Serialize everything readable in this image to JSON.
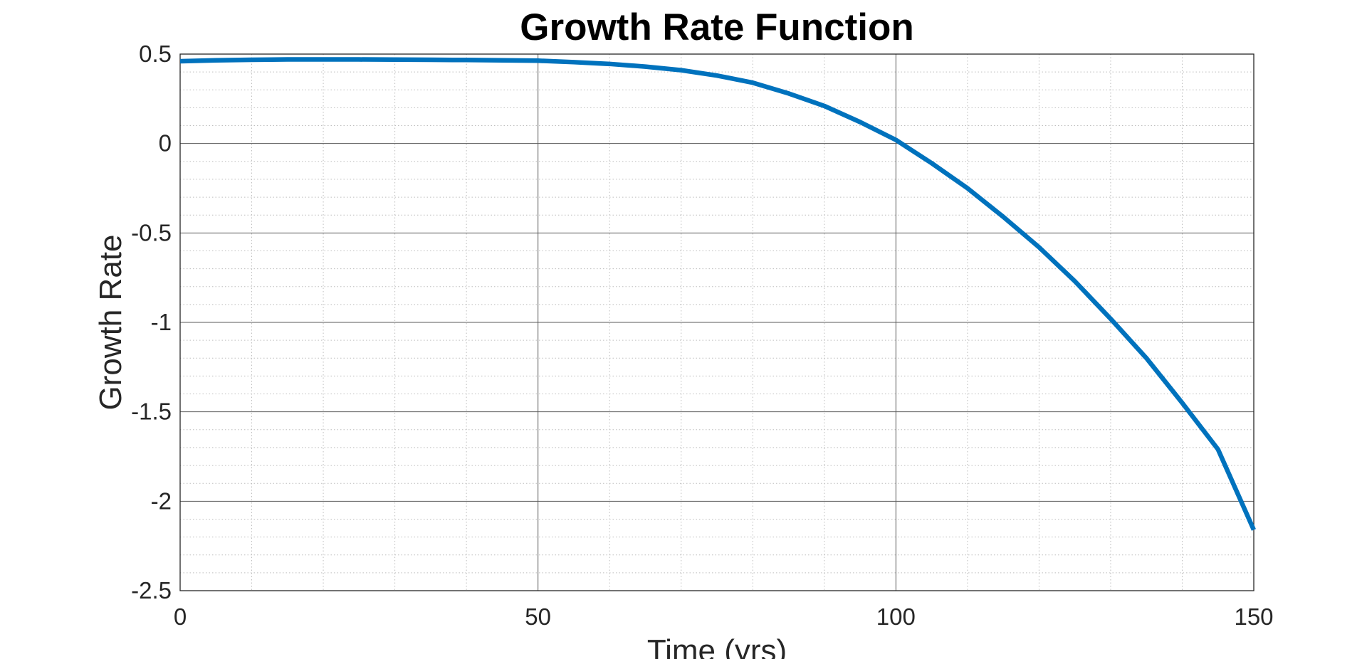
{
  "chart_data": {
    "type": "line",
    "title": "Growth Rate Function",
    "xlabel": "Time (yrs)",
    "ylabel": "Growth Rate",
    "xlim": [
      0,
      150
    ],
    "ylim": [
      -2.5,
      0.5
    ],
    "xticks": [
      0,
      50,
      100,
      150
    ],
    "yticks": [
      0.5,
      0,
      -0.5,
      -1,
      -1.5,
      -2,
      -2.5
    ],
    "grid": true,
    "minor_grid": true,
    "legend": "none",
    "series": [
      {
        "color": "#0072BD",
        "x": [
          0,
          5,
          10,
          15,
          20,
          25,
          30,
          35,
          40,
          45,
          50,
          55,
          60,
          65,
          70,
          75,
          80,
          85,
          90,
          95,
          100,
          105,
          110,
          115,
          120,
          125,
          130,
          135,
          140,
          145,
          150
        ],
        "y": [
          0.46,
          0.465,
          0.468,
          0.47,
          0.47,
          0.47,
          0.469,
          0.468,
          0.467,
          0.465,
          0.463,
          0.455,
          0.445,
          0.43,
          0.41,
          0.38,
          0.34,
          0.28,
          0.21,
          0.12,
          0.02,
          -0.11,
          -0.25,
          -0.41,
          -0.58,
          -0.77,
          -0.98,
          -1.2,
          -1.45,
          -1.71,
          -2.16
        ]
      }
    ]
  }
}
